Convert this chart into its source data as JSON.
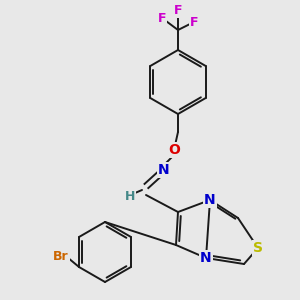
{
  "bg_color": "#e8e8e8",
  "bond_color": "#1a1a1a",
  "atom_colors": {
    "F": "#cc00cc",
    "O": "#dd0000",
    "N": "#0000cc",
    "S": "#bbbb00",
    "Br": "#cc6600",
    "H": "#448888",
    "C": "#1a1a1a"
  },
  "figsize": [
    3.0,
    3.0
  ],
  "dpi": 100
}
